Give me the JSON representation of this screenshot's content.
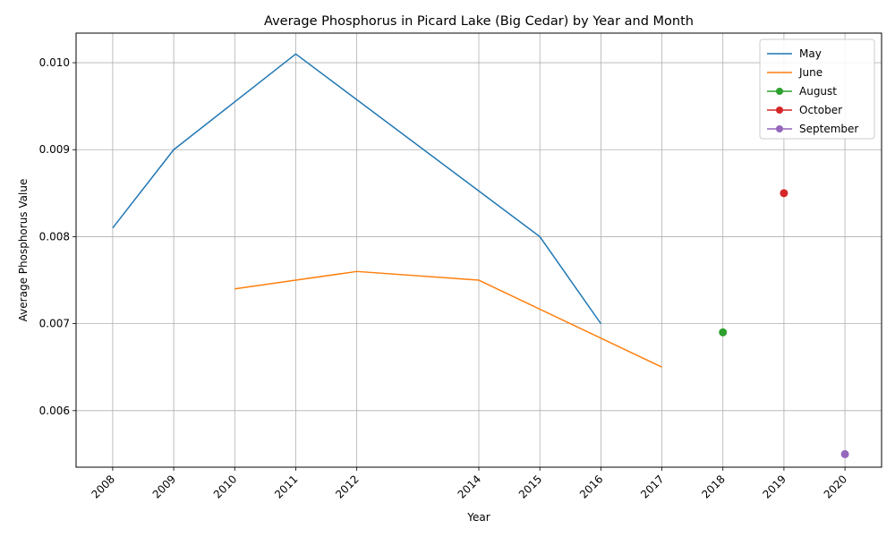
{
  "chart_data": {
    "type": "line",
    "title": "Average Phosphorus in Picard Lake (Big Cedar) by Year and Month",
    "xlabel": "Year",
    "ylabel": "Average Phosphorus Value",
    "xticks": [
      2008,
      2009,
      2010,
      2011,
      2012,
      2014,
      2015,
      2016,
      2017,
      2018,
      2019,
      2020
    ],
    "yticks": [
      0.006,
      0.007,
      0.008,
      0.009,
      0.01
    ],
    "ytick_labels": [
      "0.006",
      "0.007",
      "0.008",
      "0.009",
      "0.010"
    ],
    "xlim": [
      2007.4,
      2020.6
    ],
    "ylim": [
      0.00535,
      0.01034
    ],
    "grid": true,
    "legend_position": "top-right",
    "series": [
      {
        "name": "May",
        "color": "#1f77b4",
        "marker": "none",
        "x": [
          2008,
          2009,
          2011,
          2015,
          2016
        ],
        "y": [
          0.0081,
          0.009,
          0.0101,
          0.008,
          0.007
        ]
      },
      {
        "name": "June",
        "color": "#ff7f0e",
        "marker": "none",
        "x": [
          2010,
          2011,
          2012,
          2014,
          2017
        ],
        "y": [
          0.0074,
          0.0075,
          0.0076,
          0.0075,
          0.0065
        ]
      },
      {
        "name": "August",
        "color": "#2ca02c",
        "marker": "circle",
        "x": [
          2018
        ],
        "y": [
          0.0069
        ]
      },
      {
        "name": "October",
        "color": "#d62728",
        "marker": "circle",
        "x": [
          2019
        ],
        "y": [
          0.0085
        ]
      },
      {
        "name": "September",
        "color": "#9467bd",
        "marker": "circle",
        "x": [
          2020
        ],
        "y": [
          0.0055
        ]
      }
    ]
  }
}
